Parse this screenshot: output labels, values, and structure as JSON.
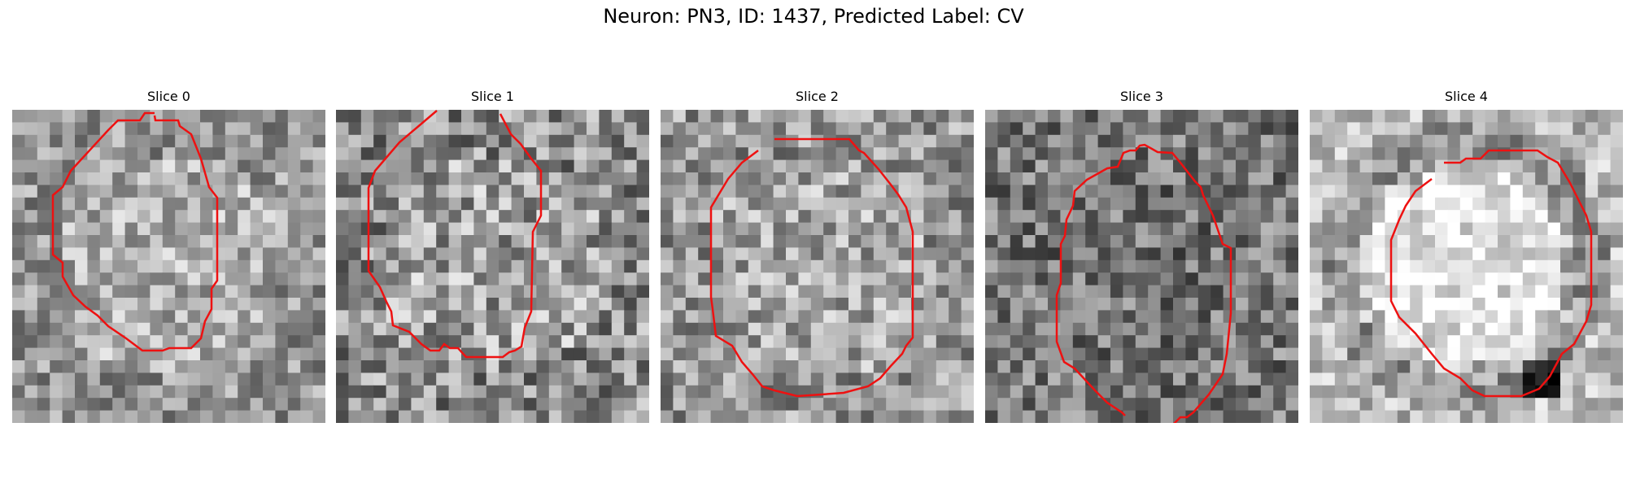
{
  "figure": {
    "title": "Neuron: PN3, ID: 1437, Predicted Label: CV"
  },
  "panels": [
    {
      "title": "Slice 0",
      "contour_color": "#ee1111"
    },
    {
      "title": "Slice 1",
      "contour_color": "#ee1111"
    },
    {
      "title": "Slice 2",
      "contour_color": "#ee1111"
    },
    {
      "title": "Slice 3",
      "contour_color": "#ee1111"
    },
    {
      "title": "Slice 4",
      "contour_color": "#ee1111"
    }
  ]
}
